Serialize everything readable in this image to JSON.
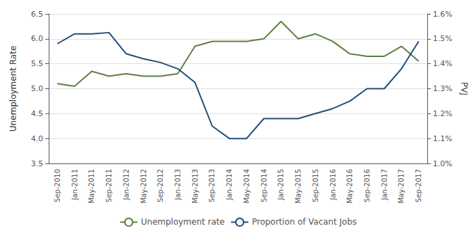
{
  "chart_data": {
    "type": "line",
    "categories": [
      "Sep-2010",
      "Jan-2011",
      "May-2011",
      "Sep-2011",
      "Jan-2012",
      "May-2012",
      "Sep-2012",
      "Jan-2013",
      "May-2013",
      "Sep-2013",
      "Jan-2014",
      "May-2014",
      "Sep-2014",
      "Jan-2015",
      "May-2015",
      "Sep-2015",
      "Jan-2016",
      "May-2016",
      "Sep-2016",
      "Jan-2017",
      "May-2017",
      "Sep-2017"
    ],
    "series": [
      {
        "name": "Unemployment rate",
        "color": "#5f7f3f",
        "axis": "y",
        "values": [
          5.1,
          5.05,
          5.35,
          5.25,
          5.3,
          5.25,
          5.25,
          5.3,
          5.85,
          5.95,
          5.95,
          5.95,
          6.0,
          6.35,
          6.0,
          6.1,
          5.95,
          5.7,
          5.65,
          5.65,
          5.85,
          5.55
        ]
      },
      {
        "name": "Proportion of Vacant Jobs",
        "color": "#214d7b",
        "axis": "y2",
        "values": [
          0.0148,
          0.0152,
          0.0152,
          0.01525,
          0.0144,
          0.0142,
          0.01405,
          0.0138,
          0.01325,
          0.0115,
          0.011,
          0.011,
          0.0118,
          0.0118,
          0.0118,
          0.012,
          0.0122,
          0.0125,
          0.013,
          0.013,
          0.0138,
          0.0149
        ]
      }
    ],
    "ylabel": "Unemployment Rate",
    "y2label": "PVJ",
    "ylim": [
      3.5,
      6.5
    ],
    "yticks": [
      3.5,
      {
        "value": 4.0,
        "label": "4.0"
      },
      4.5,
      {
        "value": 5.0,
        "label": "5.0"
      },
      5.5,
      {
        "value": 6.0,
        "label": "6.0"
      },
      6.5
    ],
    "y2lim": [
      0.01,
      0.016
    ],
    "y2ticks": [
      {
        "value": 0.01,
        "label": "1.0%"
      },
      {
        "value": 0.011,
        "label": "1.1%"
      },
      {
        "value": 0.012,
        "label": "1.2%"
      },
      {
        "value": 0.013,
        "label": "1.3%"
      },
      {
        "value": 0.014,
        "label": "1.4%"
      },
      {
        "value": 0.015,
        "label": "1.5%"
      },
      {
        "value": 0.016,
        "label": "1.6%"
      }
    ],
    "grid": true,
    "legend": "bottom"
  }
}
